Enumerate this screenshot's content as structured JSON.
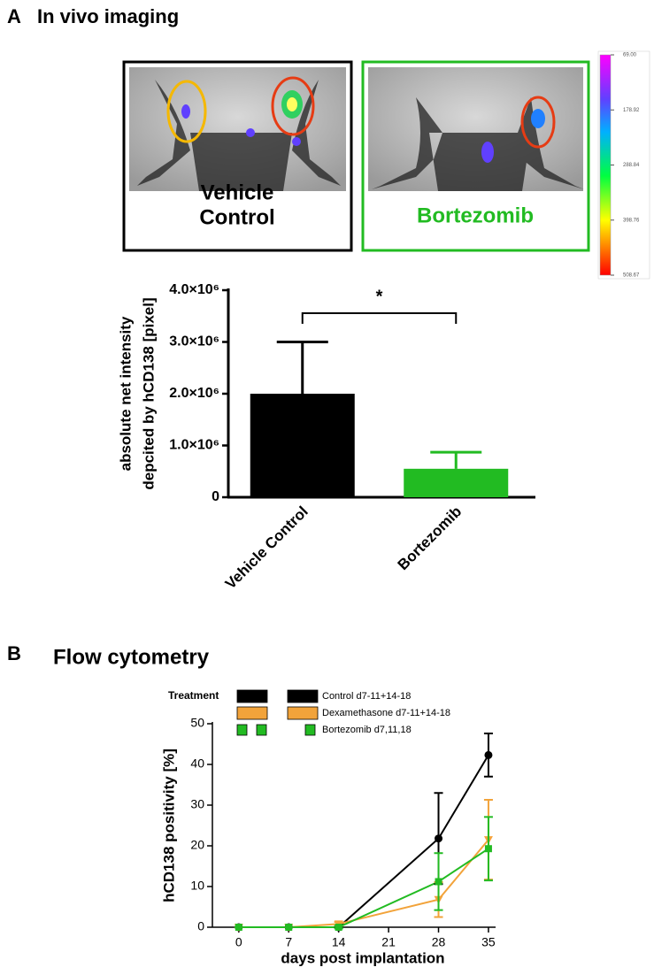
{
  "panels": [
    {
      "label": "A",
      "title": "In vivo imaging"
    },
    {
      "label": "B",
      "title": "Flow cytometry"
    }
  ],
  "images": [
    {
      "caption": [
        "Vehicle",
        "Control"
      ],
      "color": "#000000"
    },
    {
      "caption": [
        "Bortezomib"
      ],
      "color": "#22bb22"
    }
  ],
  "colorbar": {
    "ticks": [
      {
        "value": 69,
        "label": "69.00"
      },
      {
        "value": 178.92,
        "label": "178.92"
      },
      {
        "value": 288.84,
        "label": "288.84"
      },
      {
        "value": 398.76,
        "label": "398.76"
      },
      {
        "value": 508.67,
        "label": "508.67"
      }
    ]
  },
  "chart_data": [
    {
      "type": "bar",
      "y_label": [
        "absolute net intensity",
        "depcited by hCD138 [pixel]"
      ],
      "categories": [
        "Vehicle Control",
        "Bortezomib"
      ],
      "values": [
        2000000,
        550000
      ],
      "errors": [
        1000000,
        320000
      ],
      "colors": [
        "#000000",
        "#22bb22"
      ],
      "ylim": [
        0,
        4000000
      ],
      "yticks": [
        0,
        {
          "value": 1000000,
          "label": "1.0×10⁶"
        },
        {
          "value": 2000000,
          "label": "2.0×10⁶"
        },
        {
          "value": 3000000,
          "label": "3.0×10⁶"
        },
        {
          "value": 4000000,
          "label": "4.0×10⁶"
        }
      ],
      "annotation": "*"
    },
    {
      "type": "line",
      "legend_title": "Treatment",
      "x_label": "days post implantation",
      "y_label": "hCD138 positivity [%]",
      "x": [
        0,
        7,
        14,
        28,
        35
      ],
      "series": [
        {
          "name": "Control d7-11+14-18",
          "color": "#000000",
          "marker": "circle",
          "values": [
            0,
            0,
            0,
            21.8,
            42.3
          ],
          "errors": [
            0,
            0,
            0,
            11.2,
            5.3
          ]
        },
        {
          "name": "Dexamethasone d7-11+14-18",
          "color": "#f2a33a",
          "marker": "triangle",
          "values": [
            0,
            0,
            0.8,
            6.8,
            21.5
          ],
          "errors": [
            0,
            0,
            0.5,
            4.3,
            9.8
          ]
        },
        {
          "name": "Bortezomib d7,11,18",
          "color": "#22bb22",
          "marker": "square",
          "values": [
            0,
            0,
            0,
            11.2,
            19.3
          ],
          "errors": [
            0,
            0,
            0.3,
            7,
            7.8
          ]
        }
      ],
      "xlim": [
        -3.7,
        36
      ],
      "ylim": [
        0,
        50
      ],
      "xticks": [
        0,
        7,
        14,
        21,
        28,
        35
      ],
      "yticks": [
        0,
        10,
        20,
        30,
        40,
        50
      ]
    }
  ]
}
